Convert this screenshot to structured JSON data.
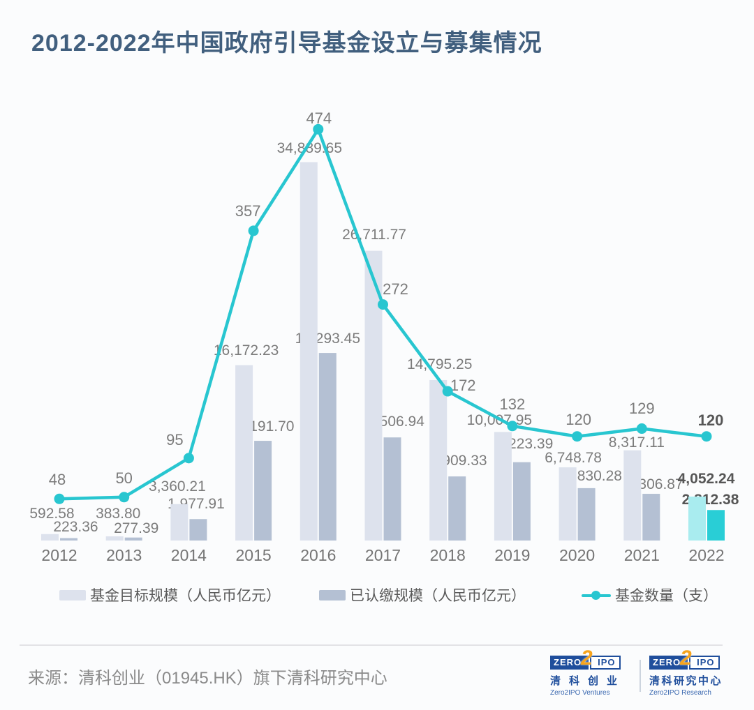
{
  "title": "2012-2022年中国政府引导基金设立与募集情况",
  "chart_data": {
    "type": "bar+line combo",
    "title": "2012-2022年中国政府引导基金设立与募集情况",
    "categories": [
      "2012",
      "2013",
      "2014",
      "2015",
      "2016",
      "2017",
      "2018",
      "2019",
      "2020",
      "2021",
      "2022"
    ],
    "series": [
      {
        "name": "基金目标规模（人民币亿元）",
        "type": "bar",
        "values": [
          592.58,
          383.8,
          3360.21,
          16172.23,
          34889.65,
          26711.77,
          14795.25,
          10007.95,
          6748.78,
          8317.11,
          4052.24
        ],
        "labels": [
          "592.58",
          "383.80",
          "3,360.21",
          "16,172.23",
          "34,889.65",
          "26,711.77",
          "14,795.25",
          "10,007.95",
          "6,748.78",
          "8,317.11",
          "4,052.24"
        ],
        "color": "#dde2ed",
        "highlight_color": "#a9ecef"
      },
      {
        "name": "已认缴规模（人民币亿元）",
        "type": "bar",
        "values": [
          223.36,
          277.39,
          1977.91,
          9191.7,
          17293.45,
          9506.94,
          5909.33,
          7223.39,
          4830.28,
          4306.87,
          2812.38
        ],
        "labels": [
          "223.36",
          "277.39",
          "1,977.91",
          "9,191.70",
          "17,293.45",
          "9,506.94",
          "5,909.33",
          "7,223.39",
          "4,830.28",
          "4,306.87",
          "2,812.38"
        ],
        "color": "#b4c0d3",
        "highlight_color": "#29ced6"
      },
      {
        "name": "基金数量（支）",
        "type": "line",
        "values": [
          48,
          50,
          95,
          357,
          474,
          272,
          172,
          132,
          120,
          129,
          120
        ],
        "labels": [
          "48",
          "50",
          "95",
          "357",
          "474",
          "272",
          "172",
          "132",
          "120",
          "129",
          "120"
        ],
        "color": "#28c6d0"
      }
    ],
    "highlight_category": "2022",
    "bar_axis_max": 40000,
    "line_axis_max": 500,
    "grid": false,
    "axes_visible": false,
    "legend_position": "bottom"
  },
  "legend": {
    "items": [
      {
        "label": "基金目标规模（人民币亿元）",
        "swatch_color": "#dde2ed",
        "marker": "square"
      },
      {
        "label": "已认缴规模（人民币亿元）",
        "swatch_color": "#b4c0d3",
        "marker": "square"
      },
      {
        "label": "基金数量（支）",
        "swatch_color": "#28c6d0",
        "marker": "line-dot"
      }
    ]
  },
  "footer": {
    "source": "来源：清科创业（01945.HK）旗下清科研究中心",
    "logos": [
      {
        "zero": "ZERO",
        "two": "2",
        "ipo": "IPO",
        "cn": "清科创业",
        "en": "Zero2IPO Ventures"
      },
      {
        "zero": "ZERO",
        "two": "2",
        "ipo": "IPO",
        "cn": "清科研究中心",
        "en": "Zero2IPO Research"
      }
    ]
  },
  "theme": {
    "background": "#fbfcfd",
    "title_color": "#415f7e",
    "value_label_color": "#7b7b7b",
    "highlight_label_color": "#565656",
    "axis_label_color": "#757575",
    "legend_text_color": "#595959",
    "source_color": "#8a8a8a",
    "divider_color": "#e3e3e6",
    "logo_blue": "#1f4e9c",
    "logo_orange": "#f7a41d"
  }
}
